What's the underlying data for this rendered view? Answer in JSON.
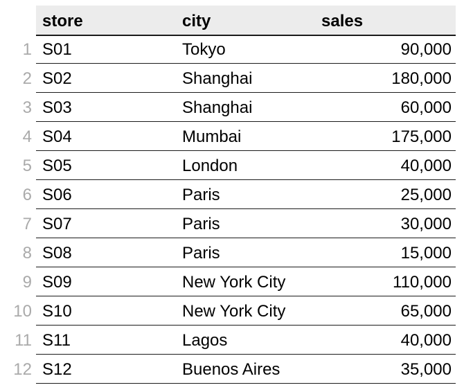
{
  "table": {
    "columns": [
      "store",
      "city",
      "sales"
    ],
    "rows": [
      {
        "index": "1",
        "store": "S01",
        "city": "Tokyo",
        "sales": "90,000"
      },
      {
        "index": "2",
        "store": "S02",
        "city": "Shanghai",
        "sales": "180,000"
      },
      {
        "index": "3",
        "store": "S03",
        "city": "Shanghai",
        "sales": "60,000"
      },
      {
        "index": "4",
        "store": "S04",
        "city": "Mumbai",
        "sales": "175,000"
      },
      {
        "index": "5",
        "store": "S05",
        "city": "London",
        "sales": "40,000"
      },
      {
        "index": "6",
        "store": "S06",
        "city": "Paris",
        "sales": "25,000"
      },
      {
        "index": "7",
        "store": "S07",
        "city": "Paris",
        "sales": "30,000"
      },
      {
        "index": "8",
        "store": "S08",
        "city": "Paris",
        "sales": "15,000"
      },
      {
        "index": "9",
        "store": "S09",
        "city": "New York City",
        "sales": "110,000"
      },
      {
        "index": "10",
        "store": "S10",
        "city": "New York City",
        "sales": "65,000"
      },
      {
        "index": "11",
        "store": "S11",
        "city": "Lagos",
        "sales": "40,000"
      },
      {
        "index": "12",
        "store": "S12",
        "city": "Buenos Aires",
        "sales": "35,000"
      }
    ]
  },
  "colors": {
    "header_background": "#ececec",
    "row_index_text": "#aaaaaa",
    "rule": "#1a1a1a"
  }
}
